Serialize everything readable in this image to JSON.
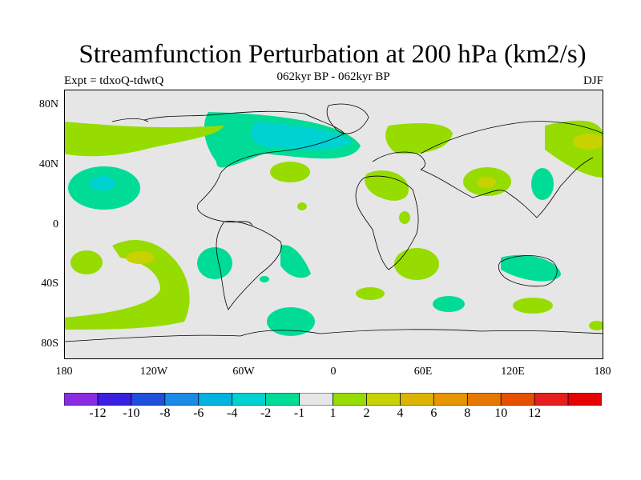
{
  "title": "Streamfunction Perturbation at 200 hPa (km2/s)",
  "left_label": "Expt = tdxoQ-tdwtQ",
  "center_label": "062kyr BP - 062kyr BP",
  "right_label": "DJF",
  "lat_ticks": [
    "80N",
    "40N",
    "0",
    "40S",
    "80S"
  ],
  "lon_ticks": [
    "180",
    "120W",
    "60W",
    "0",
    "60E",
    "120E",
    "180"
  ],
  "colorbar": {
    "colors": [
      "#8a2be2",
      "#3a1fe0",
      "#1e50dc",
      "#1a8ce6",
      "#00b4e0",
      "#00d2d2",
      "#00dc96",
      "#e6e6e6",
      "#96dc00",
      "#c8d200",
      "#dcb400",
      "#e69600",
      "#e67800",
      "#e65000",
      "#e61e1e",
      "#e60000"
    ],
    "labels": [
      "-12",
      "-10",
      "-8",
      "-6",
      "-4",
      "-2",
      "-1",
      "1",
      "2",
      "4",
      "6",
      "8",
      "10",
      "12"
    ]
  },
  "colors": {
    "background": "#e6e6e6",
    "coast": "#000000"
  }
}
